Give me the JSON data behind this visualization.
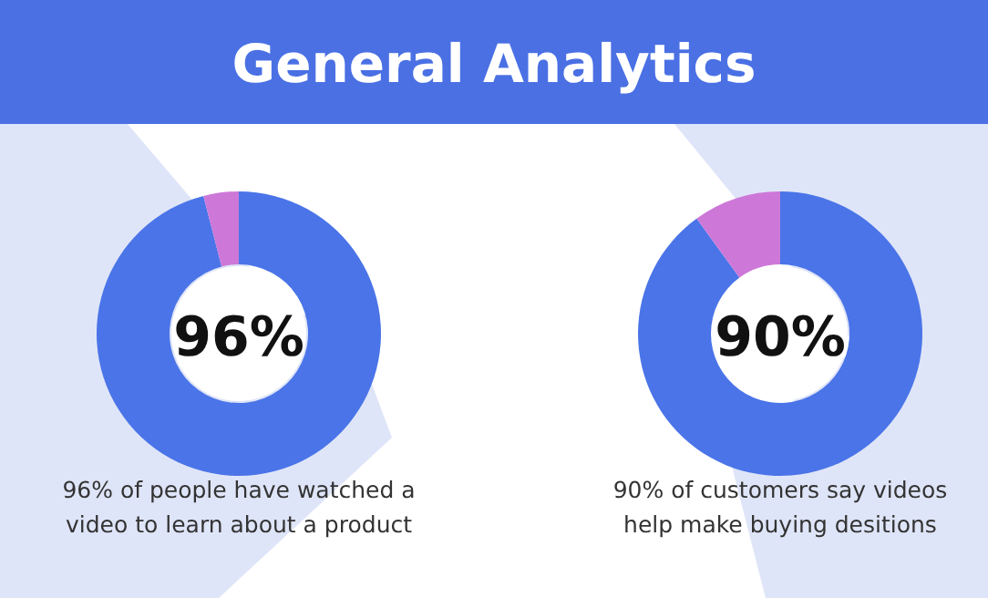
{
  "chart_data": [
    {
      "type": "donut",
      "title": "General Analytics",
      "categories": [
        null,
        null
      ],
      "values": [
        96,
        4
      ],
      "colors": [
        "#4a74e8",
        "#cd78d8"
      ],
      "annotations": [
        "96%",
        "96% of people have watched a video to learn about a product"
      ]
    },
    {
      "type": "donut",
      "categories": [
        null,
        null
      ],
      "values": [
        90,
        10
      ],
      "colors": [
        "#4a74e8",
        "#cd78d8"
      ],
      "annotations": [
        "90%",
        "90% of customers say videos help make buying desitions"
      ]
    }
  ]
}
